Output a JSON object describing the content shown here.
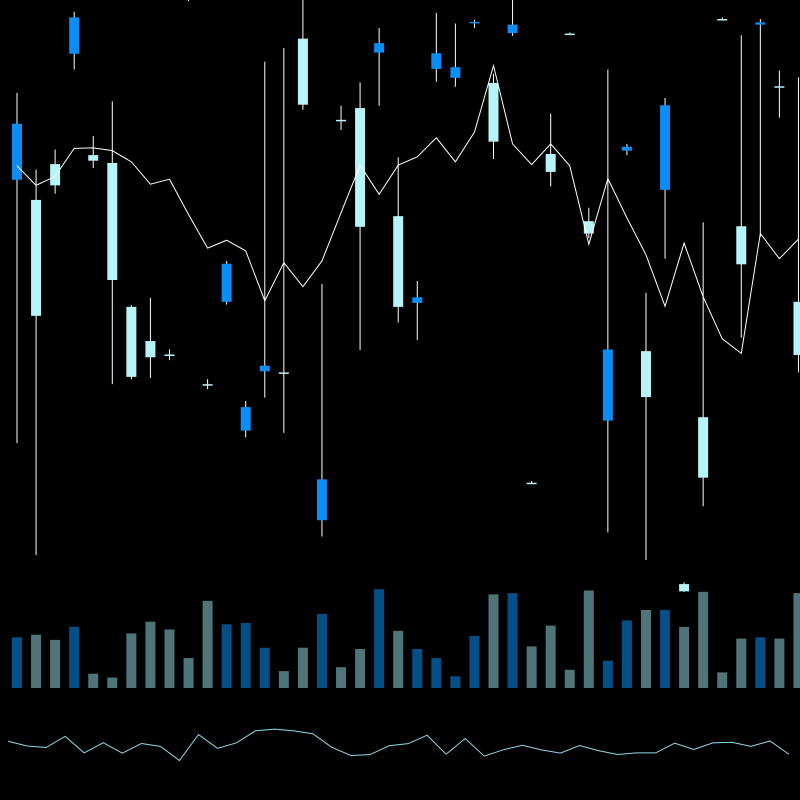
{
  "chart_data": {
    "type": "candlestick",
    "title": "",
    "xlabel": "",
    "ylabel": "",
    "grid": false,
    "legend": "none",
    "colors": {
      "background": "#000000",
      "up_candle": "#b7f4f8",
      "down_candle": "#0a8ef5",
      "wick": "#ffffff",
      "moving_average": "#ffffff",
      "volume_up": "#4f7579",
      "volume_down": "#044f86",
      "indicator_line": "#8fd8ea"
    },
    "price_range": [
      0,
      100
    ],
    "volume_range": [
      0,
      100
    ],
    "indicator_range": [
      0,
      100
    ],
    "candles": [
      {
        "open": 77.9,
        "close": 67.9,
        "high": 83.4,
        "low": 20.9
      },
      {
        "open": 43.6,
        "close": 64.3,
        "high": 69.7,
        "low": 0.9
      },
      {
        "open": 66.9,
        "close": 70.7,
        "high": 73.3,
        "low": 65.4
      },
      {
        "open": 96.9,
        "close": 90.4,
        "high": 97.9,
        "low": 87.6
      },
      {
        "open": 71.3,
        "close": 72.3,
        "high": 75.7,
        "low": 70.0
      },
      {
        "open": 50.0,
        "close": 70.9,
        "high": 81.9,
        "low": 31.4
      },
      {
        "open": 32.7,
        "close": 45.2,
        "high": 45.5,
        "low": 32.3
      },
      {
        "open": 36.2,
        "close": 39.1,
        "high": 46.8,
        "low": 32.5
      },
      {
        "open": 36.6,
        "close": 36.7,
        "high": 37.6,
        "low": 35.7
      },
      {
        "open": 100.0,
        "close": 100.9,
        "high": 101.1,
        "low": 99.8
      },
      {
        "open": 31.2,
        "close": 31.4,
        "high": 32.3,
        "low": 30.5
      },
      {
        "open": 52.9,
        "close": 46.1,
        "high": 53.4,
        "low": 45.6
      },
      {
        "open": 27.3,
        "close": 23.1,
        "high": 28.4,
        "low": 21.9
      },
      {
        "open": 34.7,
        "close": 33.7,
        "high": 89.0,
        "low": 29.0
      },
      {
        "open": 33.3,
        "close": 33.5,
        "high": 91.4,
        "low": 22.7
      },
      {
        "open": 81.3,
        "close": 93.1,
        "high": 100.9,
        "low": 80.4
      },
      {
        "open": 14.4,
        "close": 7.1,
        "high": 49.3,
        "low": 4.2
      },
      {
        "open": 78.6,
        "close": 78.6,
        "high": 81.1,
        "low": 76.8
      },
      {
        "open": 59.5,
        "close": 80.7,
        "high": 85.3,
        "low": 37.5
      },
      {
        "open": 92.3,
        "close": 90.6,
        "high": 95.0,
        "low": 81.1
      },
      {
        "open": 45.2,
        "close": 61.4,
        "high": 71.9,
        "low": 42.4
      },
      {
        "open": 46.9,
        "close": 45.9,
        "high": 49.8,
        "low": 39.3
      },
      {
        "open": 90.5,
        "close": 87.7,
        "high": 97.7,
        "low": 85.4
      },
      {
        "open": 88.0,
        "close": 86.1,
        "high": 95.8,
        "low": 84.5
      },
      {
        "open": 96.1,
        "close": 96.0,
        "high": 96.5,
        "low": 95.0
      },
      {
        "open": 74.7,
        "close": 85.2,
        "high": 86.8,
        "low": 71.6
      },
      {
        "open": 95.6,
        "close": 94.1,
        "high": 101.1,
        "low": 93.6
      },
      {
        "open": 13.8,
        "close": 13.8,
        "high": 14.1,
        "low": 13.7
      },
      {
        "open": 69.3,
        "close": 72.5,
        "high": 79.7,
        "low": 66.7
      },
      {
        "open": 94.0,
        "close": 94.0,
        "high": 94.2,
        "low": 93.9
      },
      {
        "open": 58.3,
        "close": 60.5,
        "high": 62.9,
        "low": 57.5
      },
      {
        "open": 37.6,
        "close": 24.9,
        "high": 87.6,
        "low": 4.9
      },
      {
        "open": 73.8,
        "close": 73.1,
        "high": 74.3,
        "low": 72.3
      },
      {
        "open": 29.1,
        "close": 37.3,
        "high": 47.7,
        "low": 0.0
      },
      {
        "open": 81.2,
        "close": 66.1,
        "high": 82.5,
        "low": 53.8
      },
      {
        "open": -5.6,
        "close": -4.3,
        "high": -4.0,
        "low": -5.7
      },
      {
        "open": 14.7,
        "close": 25.5,
        "high": 60.3,
        "low": 9.6
      },
      {
        "open": 96.6,
        "close": 96.6,
        "high": 96.9,
        "low": 96.4
      },
      {
        "open": 52.8,
        "close": 59.6,
        "high": 93.7,
        "low": 39.7
      },
      {
        "open": 96.0,
        "close": 95.6,
        "high": 96.6,
        "low": 57.7
      },
      {
        "open": 84.6,
        "close": 84.6,
        "high": 87.4,
        "low": 79.0
      },
      {
        "open": 36.6,
        "close": 46.1,
        "high": 86.2,
        "low": 33.5
      }
    ],
    "moving_average": [
      70.4,
      66.9,
      68.5,
      73.5,
      73.6,
      73.1,
      71.1,
      67.1,
      68.0,
      61.7,
      55.7,
      57.1,
      55.2,
      46.3,
      53.1,
      48.8,
      53.4,
      62.0,
      70.5,
      65.3,
      70.5,
      72.0,
      75.4,
      71.1,
      76.4,
      88.3,
      74.3,
      70.6,
      74.3,
      70.4,
      56.4,
      68.1,
      61.1,
      54.5,
      45.3,
      56.6,
      47.0,
      39.5,
      36.9,
      58.3,
      53.8,
      57.3
    ],
    "volume": [
      39,
      41,
      37,
      47,
      11,
      8,
      42,
      51,
      45,
      23,
      67,
      49,
      50,
      31,
      13,
      31,
      57,
      16,
      30,
      76,
      44,
      30,
      23,
      9,
      40,
      72,
      73,
      32,
      48,
      14,
      75,
      21,
      52,
      60,
      60,
      47,
      74,
      12,
      38,
      39,
      38,
      73
    ],
    "indicator": [
      63.8,
      53.3,
      49.9,
      74.8,
      38.0,
      60.7,
      37.3,
      58.8,
      52.6,
      21.1,
      78.6,
      48.2,
      60.4,
      87.3,
      90.7,
      87.0,
      80.5,
      50.5,
      32.3,
      34.1,
      53.8,
      58.5,
      77.3,
      35.0,
      69.9,
      30.9,
      44.9,
      55.0,
      44.7,
      37.5,
      54.4,
      43.1,
      34.4,
      38.1,
      38.0,
      59.7,
      45.7,
      60.2,
      61.6,
      52.5,
      64.5,
      35.0
    ]
  }
}
